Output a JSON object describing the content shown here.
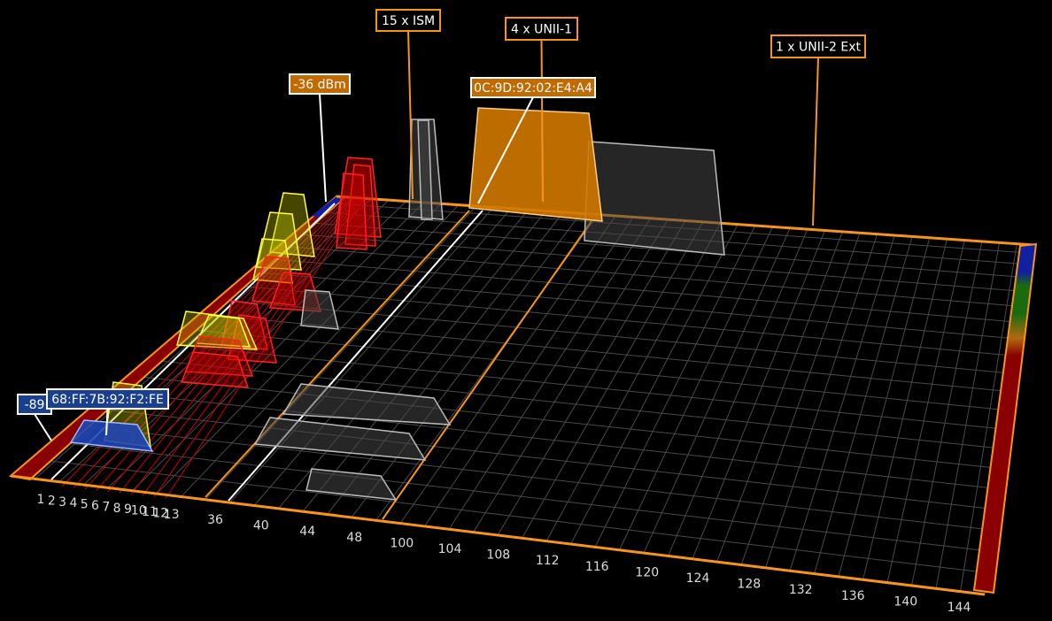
{
  "callouts": {
    "ism": "15 x ISM",
    "unii1": "4 x UNII-1",
    "unii2ext": "1 x UNII-2 Ext"
  },
  "selected_24": {
    "signal": "-36 dBm",
    "mac": "0C:9D:92:02:E4:A4"
  },
  "selected_low": {
    "signal": "-89",
    "mac": "68:FF:7B:92:F2:FE"
  },
  "channels_24": [
    1,
    2,
    3,
    4,
    5,
    6,
    7,
    8,
    9,
    10,
    11,
    12,
    13
  ],
  "channels_5": [
    36,
    40,
    44,
    48,
    100,
    104,
    108,
    112,
    116,
    120,
    124,
    128,
    132,
    136,
    140,
    144
  ]
}
